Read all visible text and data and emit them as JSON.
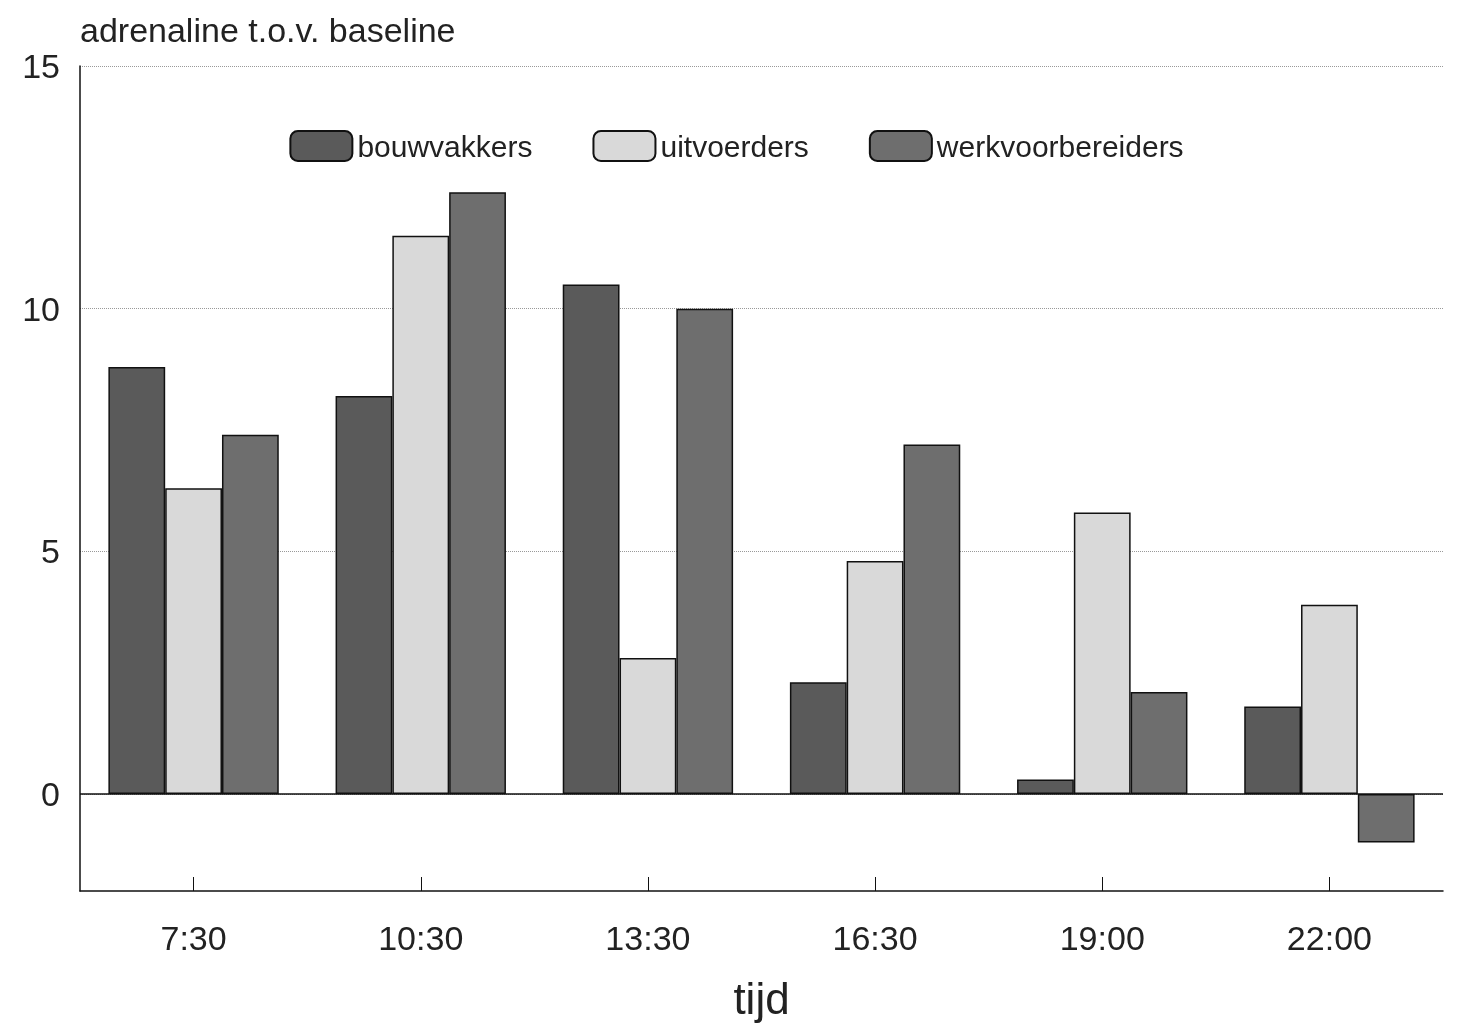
{
  "chart_data": {
    "type": "bar",
    "ylabel": "adrenaline t.o.v. baseline",
    "xlabel": "tijd",
    "categories": [
      "7:30",
      "10:30",
      "13:30",
      "16:30",
      "19:00",
      "22:00"
    ],
    "series": [
      {
        "name": "bouwvakkers",
        "color": "#5a5a5a",
        "values": [
          8.8,
          8.2,
          10.5,
          2.3,
          0.3,
          1.8
        ]
      },
      {
        "name": "uitvoerders",
        "color": "#d9d9d9",
        "values": [
          6.3,
          11.5,
          2.8,
          4.8,
          5.8,
          3.9
        ]
      },
      {
        "name": "werkvoorbereiders",
        "color": "#6e6e6e",
        "values": [
          7.4,
          12.4,
          10.0,
          7.2,
          2.1,
          -1.0
        ]
      }
    ],
    "ylim": [
      -2,
      15
    ],
    "yticks": [
      0,
      5,
      10,
      15
    ],
    "grid": "y",
    "legend": "top",
    "ref_lines": [
      {
        "axis": "y",
        "value": 0
      }
    ]
  }
}
